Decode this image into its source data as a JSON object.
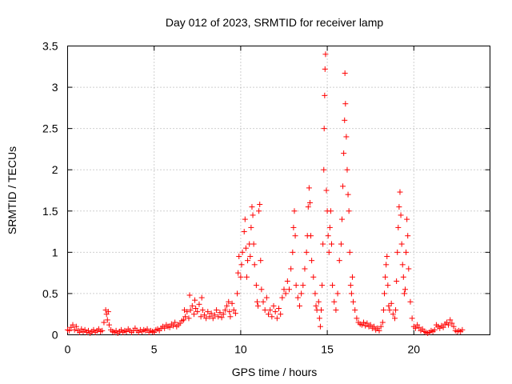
{
  "chart_data": {
    "type": "scatter",
    "title": "Day 012 of 2023, SRMTID for receiver lamp",
    "xlabel": "GPS time / hours",
    "ylabel": "SRMTID / TECUs",
    "xlim": [
      0,
      24.4
    ],
    "ylim": [
      0,
      3.5
    ],
    "xticks": [
      0,
      5,
      10,
      15,
      20
    ],
    "xtick_labels": [
      "0",
      "5",
      "10",
      "15",
      "20"
    ],
    "yticks": [
      0,
      0.5,
      1,
      1.5,
      2,
      2.5,
      3,
      3.5
    ],
    "ytick_labels": [
      "0",
      "0.5",
      "1",
      "1.5",
      "2",
      "2.5",
      "3",
      "3.5"
    ],
    "grid": true,
    "marker": "+",
    "color": "#ff0000",
    "series": [
      {
        "name": "SRMTID",
        "points": [
          [
            0.0,
            0.06
          ],
          [
            0.1,
            0.05
          ],
          [
            0.2,
            0.09
          ],
          [
            0.3,
            0.12
          ],
          [
            0.4,
            0.06
          ],
          [
            0.5,
            0.1
          ],
          [
            0.6,
            0.05
          ],
          [
            0.7,
            0.03
          ],
          [
            0.8,
            0.07
          ],
          [
            0.9,
            0.04
          ],
          [
            1.0,
            0.06
          ],
          [
            1.1,
            0.03
          ],
          [
            1.2,
            0.05
          ],
          [
            1.3,
            0.02
          ],
          [
            1.4,
            0.04
          ],
          [
            1.5,
            0.06
          ],
          [
            1.6,
            0.03
          ],
          [
            1.7,
            0.05
          ],
          [
            1.8,
            0.07
          ],
          [
            1.9,
            0.04
          ],
          [
            2.0,
            0.05
          ],
          [
            2.1,
            0.15
          ],
          [
            2.2,
            0.3
          ],
          [
            2.25,
            0.25
          ],
          [
            2.3,
            0.18
          ],
          [
            2.35,
            0.28
          ],
          [
            2.4,
            0.12
          ],
          [
            2.5,
            0.06
          ],
          [
            2.6,
            0.04
          ],
          [
            2.7,
            0.03
          ],
          [
            2.8,
            0.05
          ],
          [
            2.9,
            0.02
          ],
          [
            3.0,
            0.04
          ],
          [
            3.1,
            0.06
          ],
          [
            3.2,
            0.03
          ],
          [
            3.3,
            0.05
          ],
          [
            3.4,
            0.04
          ],
          [
            3.5,
            0.07
          ],
          [
            3.6,
            0.05
          ],
          [
            3.7,
            0.03
          ],
          [
            3.8,
            0.05
          ],
          [
            3.9,
            0.08
          ],
          [
            4.0,
            0.05
          ],
          [
            4.1,
            0.03
          ],
          [
            4.2,
            0.06
          ],
          [
            4.3,
            0.04
          ],
          [
            4.4,
            0.06
          ],
          [
            4.5,
            0.05
          ],
          [
            4.6,
            0.07
          ],
          [
            4.7,
            0.03
          ],
          [
            4.8,
            0.05
          ],
          [
            4.9,
            0.04
          ],
          [
            5.0,
            0.03
          ],
          [
            5.1,
            0.06
          ],
          [
            5.2,
            0.07
          ],
          [
            5.3,
            0.05
          ],
          [
            5.4,
            0.08
          ],
          [
            5.5,
            0.1
          ],
          [
            5.6,
            0.08
          ],
          [
            5.7,
            0.12
          ],
          [
            5.8,
            0.1
          ],
          [
            5.9,
            0.09
          ],
          [
            6.0,
            0.13
          ],
          [
            6.1,
            0.11
          ],
          [
            6.2,
            0.15
          ],
          [
            6.3,
            0.1
          ],
          [
            6.4,
            0.12
          ],
          [
            6.5,
            0.14
          ],
          [
            6.6,
            0.17
          ],
          [
            6.7,
            0.18
          ],
          [
            6.75,
            0.3
          ],
          [
            6.8,
            0.22
          ],
          [
            6.9,
            0.28
          ],
          [
            7.0,
            0.2
          ],
          [
            7.05,
            0.48
          ],
          [
            7.1,
            0.3
          ],
          [
            7.2,
            0.35
          ],
          [
            7.3,
            0.25
          ],
          [
            7.35,
            0.42
          ],
          [
            7.4,
            0.32
          ],
          [
            7.5,
            0.28
          ],
          [
            7.6,
            0.37
          ],
          [
            7.7,
            0.22
          ],
          [
            7.75,
            0.45
          ],
          [
            7.8,
            0.3
          ],
          [
            7.9,
            0.24
          ],
          [
            8.0,
            0.2
          ],
          [
            8.1,
            0.28
          ],
          [
            8.2,
            0.22
          ],
          [
            8.3,
            0.26
          ],
          [
            8.4,
            0.2
          ],
          [
            8.5,
            0.24
          ],
          [
            8.6,
            0.3
          ],
          [
            8.7,
            0.22
          ],
          [
            8.8,
            0.27
          ],
          [
            8.9,
            0.21
          ],
          [
            9.0,
            0.25
          ],
          [
            9.1,
            0.3
          ],
          [
            9.2,
            0.35
          ],
          [
            9.3,
            0.4
          ],
          [
            9.35,
            0.28
          ],
          [
            9.4,
            0.22
          ],
          [
            9.5,
            0.38
          ],
          [
            9.6,
            0.3
          ],
          [
            9.7,
            0.26
          ],
          [
            9.8,
            0.5
          ],
          [
            9.85,
            0.75
          ],
          [
            9.9,
            0.95
          ],
          [
            10.0,
            0.7
          ],
          [
            10.05,
            0.85
          ],
          [
            10.1,
            1.0
          ],
          [
            10.2,
            1.25
          ],
          [
            10.25,
            1.4
          ],
          [
            10.3,
            1.05
          ],
          [
            10.35,
            0.7
          ],
          [
            10.4,
            0.9
          ],
          [
            10.5,
            1.1
          ],
          [
            10.55,
            0.95
          ],
          [
            10.6,
            1.3
          ],
          [
            10.65,
            1.55
          ],
          [
            10.7,
            1.45
          ],
          [
            10.75,
            1.1
          ],
          [
            10.8,
            0.85
          ],
          [
            10.9,
            0.6
          ],
          [
            10.95,
            0.4
          ],
          [
            11.0,
            0.35
          ],
          [
            11.05,
            1.5
          ],
          [
            11.1,
            1.58
          ],
          [
            11.15,
            0.9
          ],
          [
            11.2,
            0.55
          ],
          [
            11.3,
            0.4
          ],
          [
            11.4,
            0.3
          ],
          [
            11.5,
            0.45
          ],
          [
            11.6,
            0.25
          ],
          [
            11.7,
            0.3
          ],
          [
            11.8,
            0.22
          ],
          [
            11.9,
            0.35
          ],
          [
            12.0,
            0.28
          ],
          [
            12.1,
            0.2
          ],
          [
            12.2,
            0.32
          ],
          [
            12.3,
            0.25
          ],
          [
            12.4,
            0.45
          ],
          [
            12.5,
            0.55
          ],
          [
            12.6,
            0.5
          ],
          [
            12.7,
            0.65
          ],
          [
            12.8,
            0.55
          ],
          [
            12.9,
            0.8
          ],
          [
            13.0,
            1.0
          ],
          [
            13.05,
            1.3
          ],
          [
            13.1,
            1.5
          ],
          [
            13.15,
            1.2
          ],
          [
            13.2,
            0.6
          ],
          [
            13.3,
            0.45
          ],
          [
            13.4,
            0.35
          ],
          [
            13.5,
            0.5
          ],
          [
            13.6,
            0.6
          ],
          [
            13.7,
            0.8
          ],
          [
            13.8,
            1.0
          ],
          [
            13.85,
            1.2
          ],
          [
            13.9,
            1.55
          ],
          [
            13.95,
            1.78
          ],
          [
            14.0,
            1.6
          ],
          [
            14.05,
            1.2
          ],
          [
            14.1,
            0.9
          ],
          [
            14.2,
            0.7
          ],
          [
            14.3,
            0.5
          ],
          [
            14.35,
            0.35
          ],
          [
            14.4,
            0.3
          ],
          [
            14.5,
            0.4
          ],
          [
            14.55,
            0.2
          ],
          [
            14.6,
            0.1
          ],
          [
            14.65,
            0.3
          ],
          [
            14.7,
            0.6
          ],
          [
            14.75,
            1.1
          ],
          [
            14.8,
            2.0
          ],
          [
            14.82,
            2.5
          ],
          [
            14.85,
            2.9
          ],
          [
            14.87,
            3.22
          ],
          [
            14.9,
            3.4
          ],
          [
            14.95,
            1.75
          ],
          [
            15.0,
            1.5
          ],
          [
            15.05,
            1.2
          ],
          [
            15.1,
            1.0
          ],
          [
            15.15,
            1.3
          ],
          [
            15.2,
            1.5
          ],
          [
            15.25,
            1.1
          ],
          [
            15.3,
            0.6
          ],
          [
            15.4,
            0.4
          ],
          [
            15.5,
            0.3
          ],
          [
            15.6,
            0.5
          ],
          [
            15.7,
            0.9
          ],
          [
            15.8,
            1.1
          ],
          [
            15.85,
            1.4
          ],
          [
            15.9,
            1.8
          ],
          [
            15.95,
            2.2
          ],
          [
            16.0,
            2.6
          ],
          [
            16.02,
            3.17
          ],
          [
            16.05,
            2.8
          ],
          [
            16.1,
            2.4
          ],
          [
            16.15,
            2.0
          ],
          [
            16.2,
            1.7
          ],
          [
            16.25,
            1.5
          ],
          [
            16.3,
            1.0
          ],
          [
            16.35,
            0.6
          ],
          [
            16.4,
            0.5
          ],
          [
            16.45,
            0.7
          ],
          [
            16.5,
            0.4
          ],
          [
            16.6,
            0.3
          ],
          [
            16.7,
            0.2
          ],
          [
            16.8,
            0.15
          ],
          [
            16.9,
            0.13
          ],
          [
            17.0,
            0.12
          ],
          [
            17.1,
            0.15
          ],
          [
            17.2,
            0.11
          ],
          [
            17.3,
            0.14
          ],
          [
            17.4,
            0.1
          ],
          [
            17.5,
            0.12
          ],
          [
            17.6,
            0.08
          ],
          [
            17.7,
            0.1
          ],
          [
            17.8,
            0.06
          ],
          [
            17.9,
            0.08
          ],
          [
            18.0,
            0.05
          ],
          [
            18.1,
            0.1
          ],
          [
            18.2,
            0.15
          ],
          [
            18.25,
            0.3
          ],
          [
            18.3,
            0.5
          ],
          [
            18.35,
            0.7
          ],
          [
            18.4,
            0.85
          ],
          [
            18.45,
            0.95
          ],
          [
            18.5,
            0.6
          ],
          [
            18.55,
            0.35
          ],
          [
            18.6,
            0.3
          ],
          [
            18.7,
            0.38
          ],
          [
            18.8,
            0.25
          ],
          [
            18.9,
            0.2
          ],
          [
            18.95,
            0.3
          ],
          [
            19.0,
            0.65
          ],
          [
            19.05,
            1.0
          ],
          [
            19.1,
            1.3
          ],
          [
            19.15,
            1.55
          ],
          [
            19.2,
            1.73
          ],
          [
            19.25,
            1.45
          ],
          [
            19.3,
            1.1
          ],
          [
            19.35,
            0.85
          ],
          [
            19.4,
            0.7
          ],
          [
            19.45,
            0.5
          ],
          [
            19.5,
            0.55
          ],
          [
            19.55,
            1.0
          ],
          [
            19.6,
            1.4
          ],
          [
            19.65,
            1.2
          ],
          [
            19.7,
            0.8
          ],
          [
            19.8,
            0.4
          ],
          [
            19.9,
            0.2
          ],
          [
            20.0,
            0.1
          ],
          [
            20.1,
            0.08
          ],
          [
            20.2,
            0.12
          ],
          [
            20.3,
            0.09
          ],
          [
            20.4,
            0.05
          ],
          [
            20.5,
            0.07
          ],
          [
            20.6,
            0.04
          ],
          [
            20.7,
            0.03
          ],
          [
            20.8,
            0.02
          ],
          [
            20.9,
            0.03
          ],
          [
            21.0,
            0.05
          ],
          [
            21.1,
            0.04
          ],
          [
            21.2,
            0.06
          ],
          [
            21.3,
            0.12
          ],
          [
            21.4,
            0.1
          ],
          [
            21.5,
            0.08
          ],
          [
            21.6,
            0.11
          ],
          [
            21.7,
            0.09
          ],
          [
            21.8,
            0.13
          ],
          [
            21.9,
            0.15
          ],
          [
            22.0,
            0.12
          ],
          [
            22.1,
            0.18
          ],
          [
            22.2,
            0.14
          ],
          [
            22.3,
            0.1
          ],
          [
            22.4,
            0.05
          ],
          [
            22.5,
            0.04
          ],
          [
            22.6,
            0.05
          ],
          [
            22.7,
            0.04
          ],
          [
            22.8,
            0.06
          ]
        ]
      }
    ]
  }
}
